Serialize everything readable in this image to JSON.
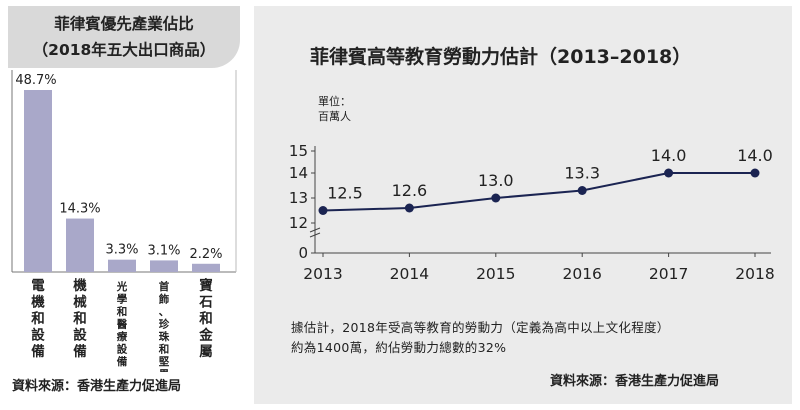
{
  "left": {
    "title_line1": "菲律賓優先產業佔比",
    "title_line2": "（2018年五大出口商品）",
    "source": "資料來源：香港生產力促進局"
  },
  "right": {
    "title": "菲律賓高等教育勞動力估計（2013–2018）",
    "unit_line1": "單位：",
    "unit_line2": "百萬人",
    "note_line1": "據估計，2018年受高等教育的勞動力（定義為高中以上文化程度）",
    "note_line2": "約為1400萬，約佔勞動力總數的32%",
    "source": "資料來源：香港生產力促進局"
  },
  "colors": {
    "bar": "#a9a8c9",
    "line": "#1b2452",
    "panel_bg": "#ebebeb",
    "title_box": "#d9d9d9"
  },
  "chart_data": [
    {
      "type": "bar",
      "title": "菲律賓優先產業佔比（2018年五大出口商品）",
      "categories": [
        "電機和設備",
        "機械和設備",
        "光學和醫療設備",
        "首飾、珍珠和堅果",
        "寶石和金屬"
      ],
      "values": [
        48.7,
        14.3,
        3.3,
        3.1,
        2.2
      ],
      "value_labels": [
        "48.7%",
        "14.3%",
        "3.3%",
        "3.1%",
        "2.2%"
      ],
      "ylim": [
        0,
        55
      ],
      "grid": false
    },
    {
      "type": "line",
      "title": "菲律賓高等教育勞動力估計（2013–2018）",
      "ylabel": "單位：百萬人",
      "x": [
        "2013",
        "2014",
        "2015",
        "2016",
        "2017",
        "2018"
      ],
      "values": [
        12.5,
        12.6,
        13.0,
        13.3,
        14.0,
        14.0
      ],
      "value_labels": [
        "12.5",
        "12.6",
        "13.0",
        "13.3",
        "14.0",
        "14.0"
      ],
      "yticks": [
        "15",
        "14",
        "13",
        "12",
        "0"
      ],
      "axis_break": true,
      "grid": false
    }
  ]
}
